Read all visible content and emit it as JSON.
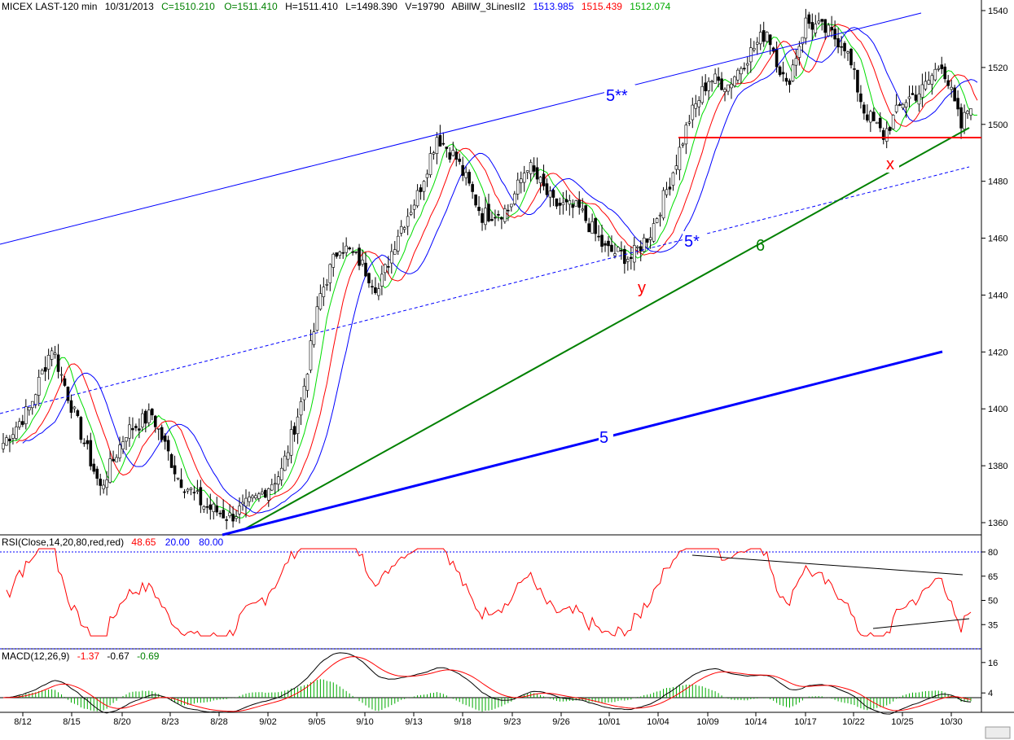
{
  "header": {
    "symbol": "MICEX LAST-120 min",
    "date": "10/31/2013",
    "close": "C=1510.210",
    "open": "O=1511.410",
    "high": "H=1511.410",
    "low": "L=1498.390",
    "volume": "V=19790",
    "indicator": "ABillW_3LinesII2",
    "line1": "1513.985",
    "line2": "1515.439",
    "line3": "1512.074"
  },
  "rsi_header": {
    "label": "RSI(Close,14,20,80,red,red)",
    "value": "48.65",
    "low": "20.00",
    "high": "80.00"
  },
  "macd_header": {
    "label": "MACD(12,26,9)",
    "v1": "-1.37",
    "v2": "-0.67",
    "v3": "-0.69"
  },
  "colors": {
    "blue": "#0000ff",
    "red": "#ff0000",
    "green": "#00aa00",
    "darkgreen": "#008000",
    "black": "#000000"
  },
  "chart_data": {
    "type": "candlestick",
    "x_tick_labels": [
      "8/12",
      "8/15",
      "8/20",
      "8/23",
      "8/28",
      "9/02",
      "9/05",
      "9/10",
      "9/13",
      "9/18",
      "9/23",
      "9/26",
      "10/01",
      "10/04",
      "10/09",
      "10/14",
      "10/17",
      "10/22",
      "10/25",
      "10/30"
    ],
    "y_ticks": [
      "1540",
      "1520",
      "1500",
      "1480",
      "1460",
      "1440",
      "1420",
      "1400",
      "1380",
      "1360"
    ],
    "ylim": [
      1355,
      1545
    ],
    "anchors": [
      [
        0,
        1388
      ],
      [
        8,
        1400
      ],
      [
        15,
        1422
      ],
      [
        22,
        1398
      ],
      [
        30,
        1372
      ],
      [
        38,
        1392
      ],
      [
        46,
        1398
      ],
      [
        54,
        1376
      ],
      [
        62,
        1366
      ],
      [
        70,
        1362
      ],
      [
        78,
        1368
      ],
      [
        86,
        1378
      ],
      [
        92,
        1402
      ],
      [
        98,
        1440
      ],
      [
        104,
        1458
      ],
      [
        110,
        1452
      ],
      [
        116,
        1442
      ],
      [
        122,
        1462
      ],
      [
        128,
        1475
      ],
      [
        134,
        1496
      ],
      [
        140,
        1488
      ],
      [
        148,
        1468
      ],
      [
        156,
        1470
      ],
      [
        162,
        1486
      ],
      [
        170,
        1472
      ],
      [
        178,
        1470
      ],
      [
        186,
        1456
      ],
      [
        194,
        1453
      ],
      [
        200,
        1462
      ],
      [
        206,
        1480
      ],
      [
        212,
        1502
      ],
      [
        218,
        1516
      ],
      [
        224,
        1514
      ],
      [
        230,
        1524
      ],
      [
        236,
        1533
      ],
      [
        242,
        1513
      ],
      [
        248,
        1536
      ],
      [
        254,
        1533
      ],
      [
        260,
        1528
      ],
      [
        266,
        1505
      ],
      [
        272,
        1496
      ],
      [
        278,
        1508
      ],
      [
        284,
        1512
      ],
      [
        290,
        1522
      ],
      [
        296,
        1499
      ],
      [
        299,
        1508
      ]
    ],
    "annotations": [
      "5**",
      "5*",
      "6",
      "5",
      "y",
      "x"
    ],
    "rsi_ticks": [
      "80",
      "65",
      "50",
      "35"
    ],
    "macd_ticks": [
      "16",
      "4"
    ]
  }
}
